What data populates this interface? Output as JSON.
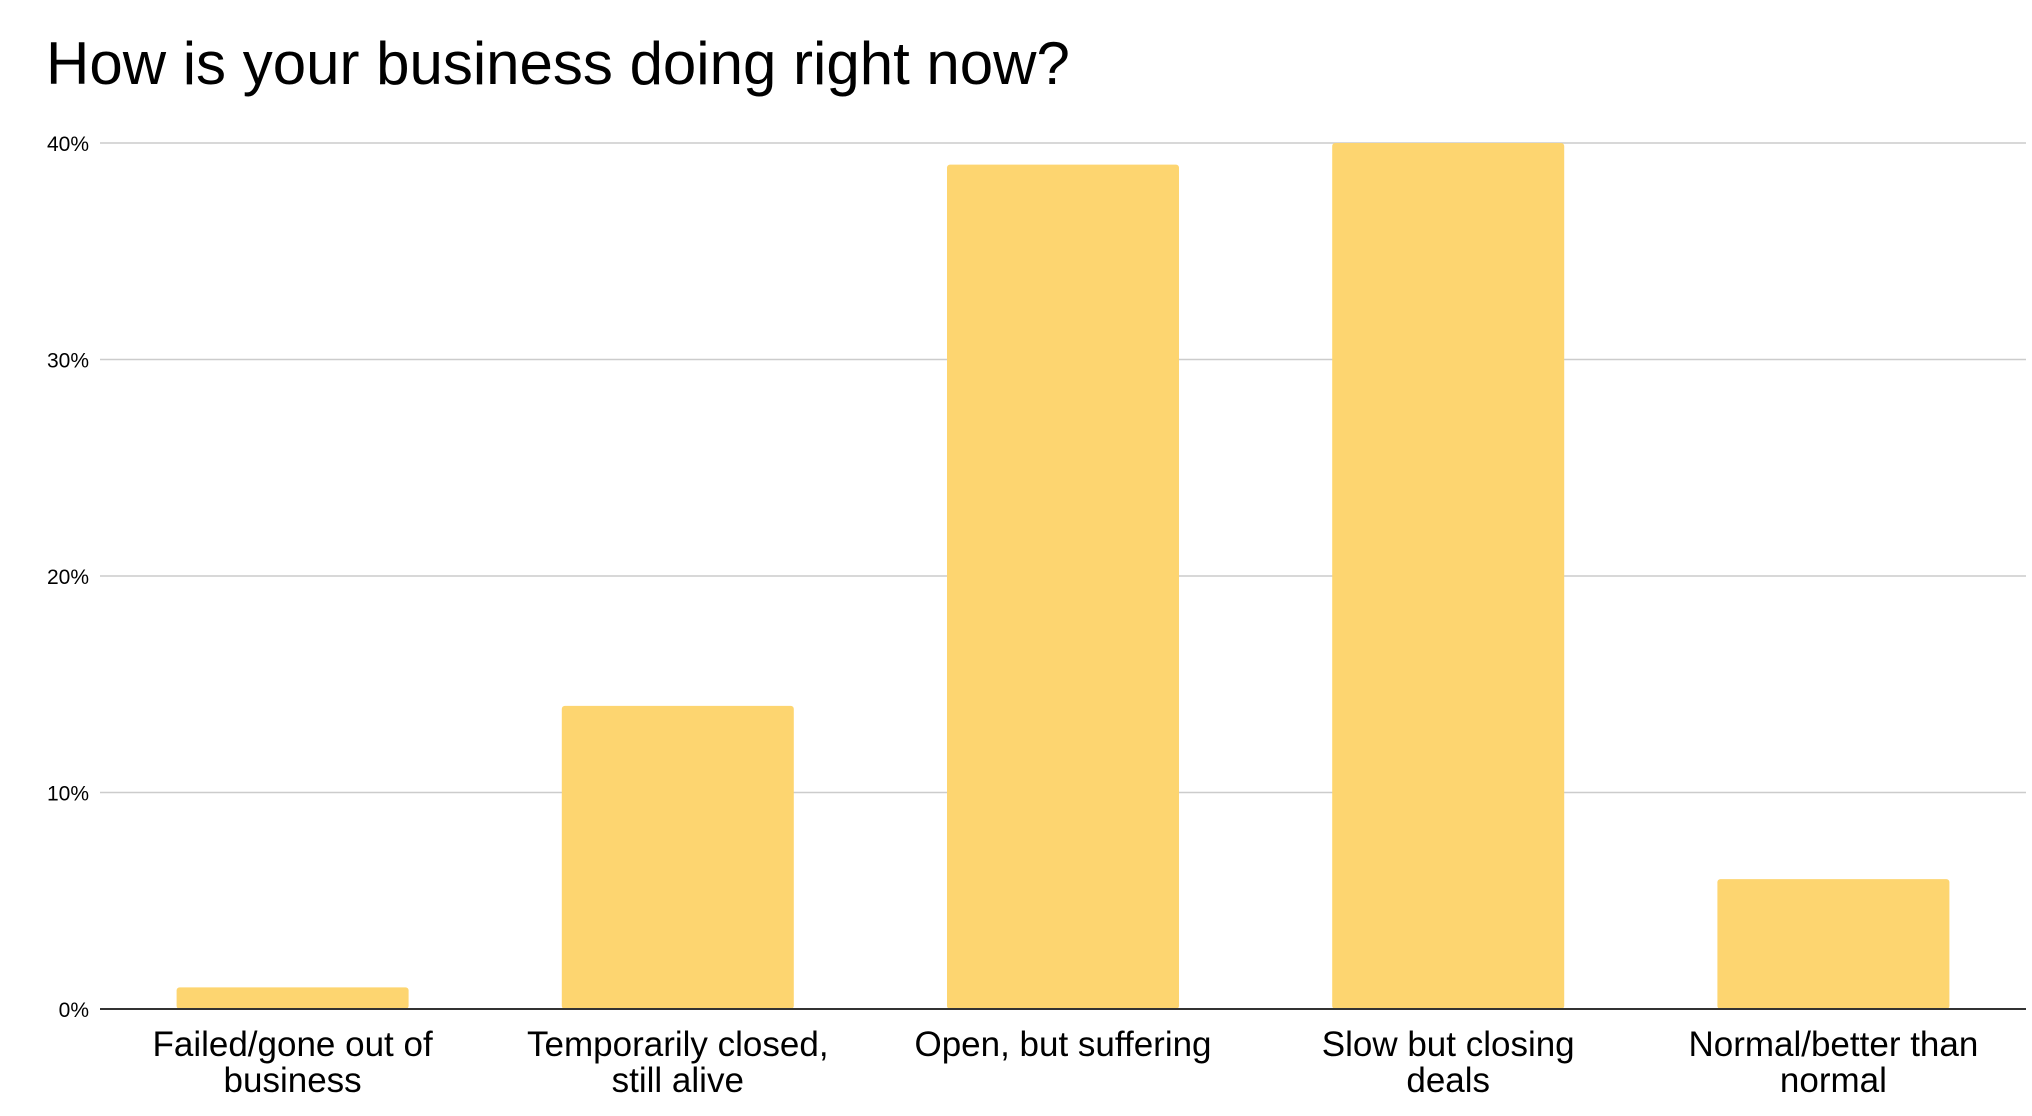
{
  "chart_data": {
    "type": "bar",
    "title": "How is your business doing right now?",
    "xlabel": "",
    "ylabel": "",
    "categories": [
      [
        "Failed/gone out of",
        "business"
      ],
      [
        "Temporarily closed,",
        "still alive"
      ],
      [
        "Open, but suffering"
      ],
      [
        "Slow but closing",
        "deals"
      ],
      [
        "Normal/better than",
        "normal"
      ]
    ],
    "values": [
      1,
      14,
      39,
      40,
      6
    ],
    "value_unit": "%",
    "ylim": [
      0,
      40
    ],
    "yticks": [
      {
        "value": 0,
        "label": "0%"
      },
      {
        "value": 10,
        "label": "10%"
      },
      {
        "value": 20,
        "label": "20%"
      },
      {
        "value": 30,
        "label": "30%"
      },
      {
        "value": 40,
        "label": "40%"
      }
    ],
    "grid": true,
    "legend": "none",
    "colors": {
      "bar": "#fdd570",
      "grid": "#cccccc",
      "axis": "#333333",
      "text": "#000000"
    }
  }
}
